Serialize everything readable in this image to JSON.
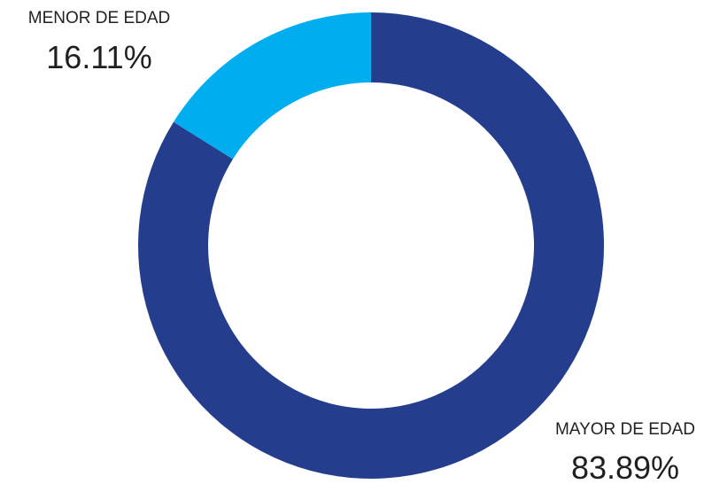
{
  "chart_data": {
    "type": "pie",
    "variant": "donut",
    "title": "",
    "slices": [
      {
        "label": "MAYOR DE EDAD",
        "value": 83.89,
        "display": "83.89%",
        "color": "#253d8d"
      },
      {
        "label": "MENOR DE EDAD",
        "value": 16.11,
        "display": "16.11%",
        "color": "#00adee"
      }
    ],
    "legend": "none",
    "labels": "outside-slices"
  }
}
